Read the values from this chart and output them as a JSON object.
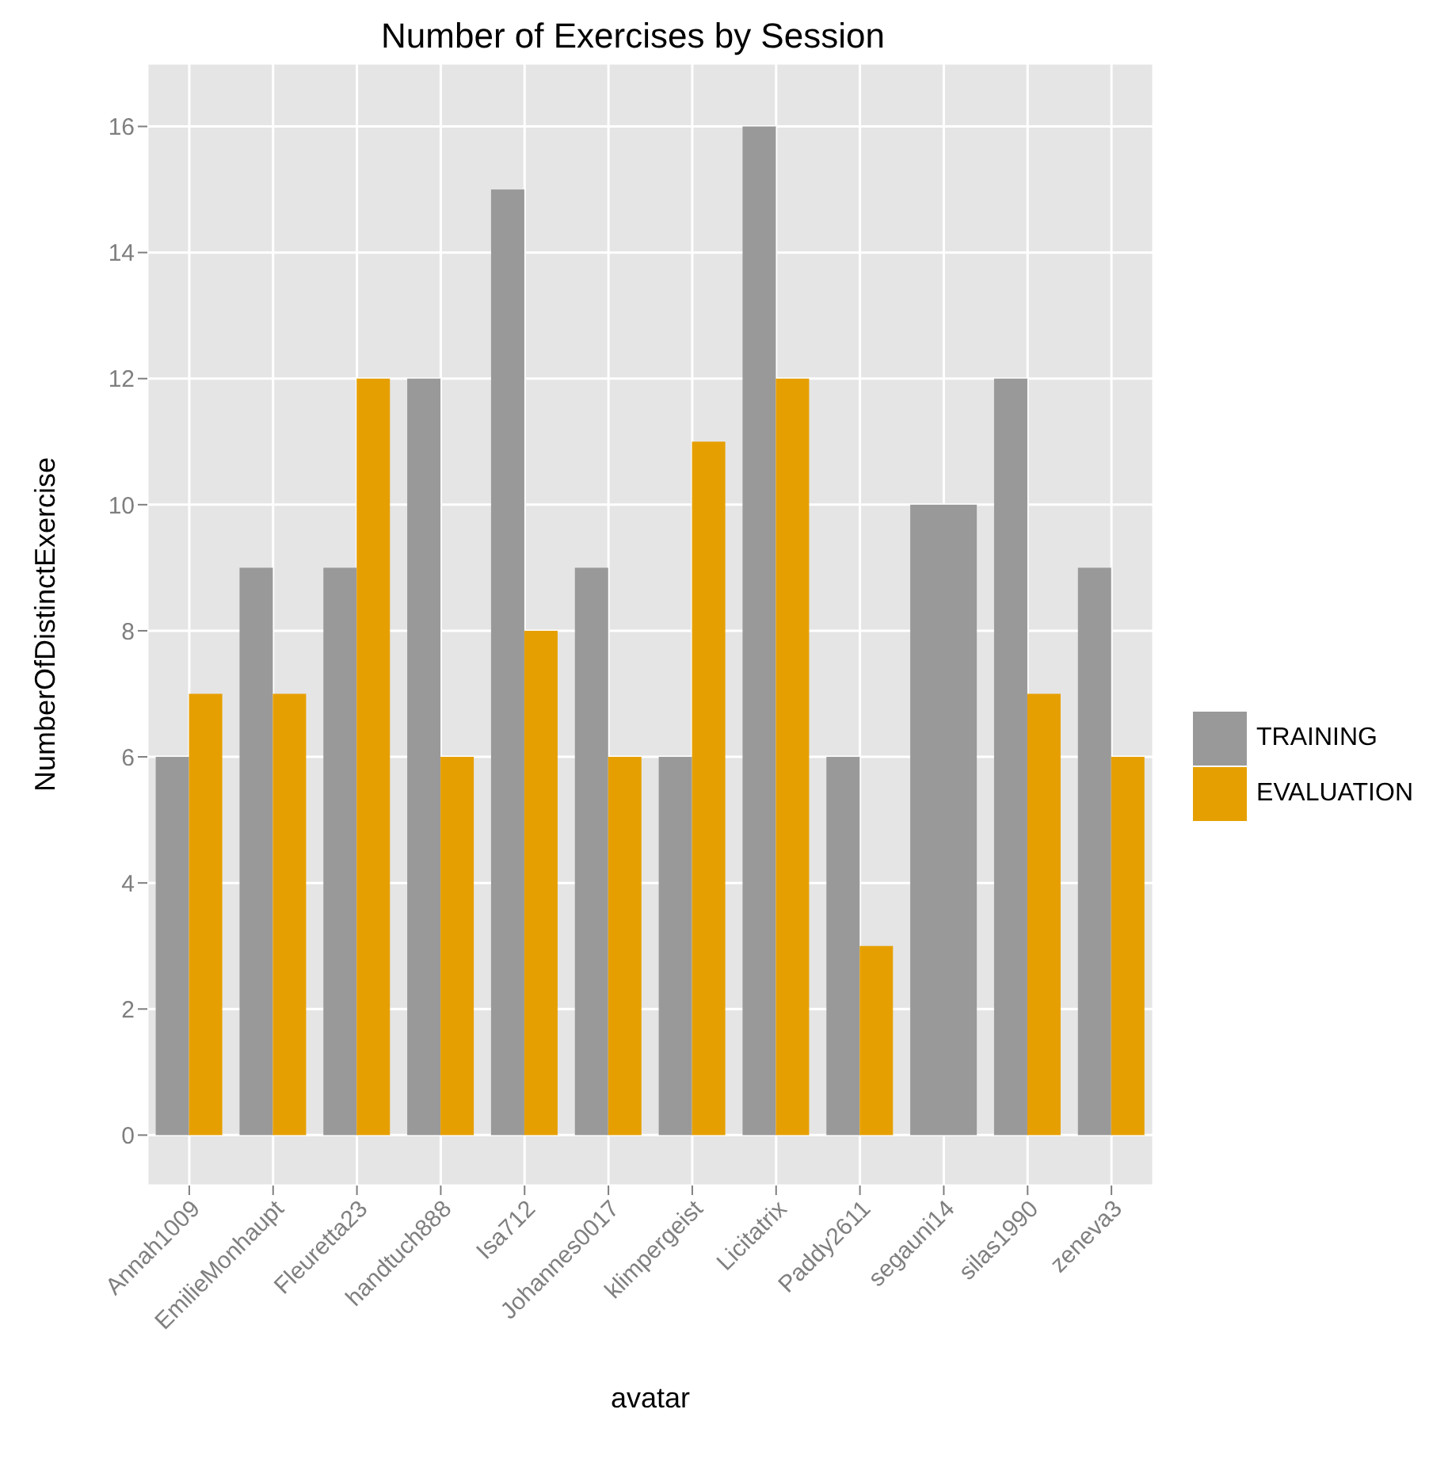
{
  "chart_data": {
    "type": "bar",
    "title": "Number of Exercises by Session",
    "xlabel": "avatar",
    "ylabel": "NumberOfDistinctExercise",
    "categories": [
      "Annah1009",
      "EmilieMonhaupt",
      "Fleuretta23",
      "handtuch888",
      "Isa712",
      "Johannes0017",
      "klimpergeist",
      "Licitatrix",
      "Paddy2611",
      "segauni14",
      "silas1990",
      "zeneva3"
    ],
    "series": [
      {
        "name": "TRAINING",
        "color": "#999999",
        "values": [
          6,
          9,
          9,
          12,
          15,
          9,
          6,
          16,
          6,
          10,
          12,
          9
        ]
      },
      {
        "name": "EVALUATION",
        "color": "#e69f00",
        "values": [
          7,
          7,
          12,
          6,
          8,
          6,
          11,
          12,
          3,
          null,
          7,
          6
        ]
      }
    ],
    "ylim": [
      -0.8,
      17
    ],
    "yticks": [
      0,
      2,
      4,
      6,
      8,
      10,
      12,
      14,
      16
    ],
    "grid": true,
    "legend": "right"
  }
}
